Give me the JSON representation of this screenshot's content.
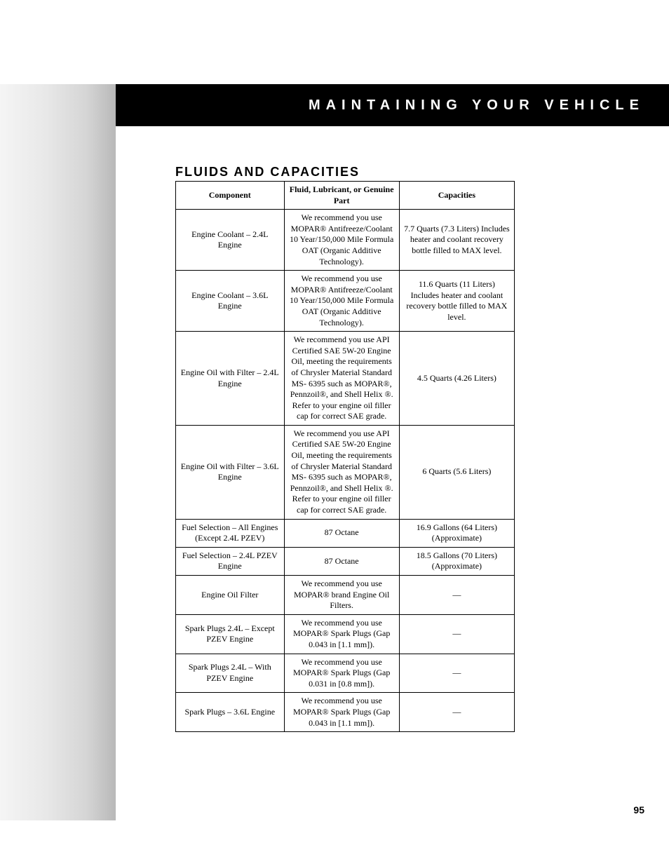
{
  "header": {
    "title": "MAINTAINING YOUR VEHICLE"
  },
  "section": {
    "title": "FLUIDS AND CAPACITIES"
  },
  "table": {
    "columns": [
      "Component",
      "Fluid, Lubricant, or Genuine Part",
      "Capacities"
    ],
    "rows": [
      {
        "component": "Engine Coolant – 2.4L Engine",
        "fluid": "We recommend you use MOPAR® Antifreeze/Coolant 10 Year/150,000 Mile Formula OAT (Organic Additive Technology).",
        "capacity": "7.7 Quarts (7.3 Liters) Includes heater and coolant recovery bottle filled to MAX level."
      },
      {
        "component": "Engine Coolant – 3.6L Engine",
        "fluid": "We recommend you use MOPAR® Antifreeze/Coolant 10 Year/150,000 Mile Formula OAT (Organic Additive Technology).",
        "capacity": "11.6 Quarts (11 Liters) Includes heater and coolant recovery bottle filled to MAX level."
      },
      {
        "component": "Engine Oil with Filter – 2.4L Engine",
        "fluid": "We recommend you use API Certified SAE 5W-20 Engine Oil, meeting the requirements of Chrysler Material Standard MS- 6395 such as MOPAR®, Pennzoil®, and Shell Helix ®. Refer to your engine oil filler cap for correct SAE grade.",
        "capacity": "4.5 Quarts (4.26 Liters)"
      },
      {
        "component": "Engine Oil with Filter – 3.6L Engine",
        "fluid": "We recommend you use API Certified SAE 5W-20 Engine Oil, meeting the requirements of Chrysler Material Standard MS- 6395 such as MOPAR®, Pennzoil®, and Shell Helix ®. Refer to your engine oil filler cap for correct SAE grade.",
        "capacity": "6 Quarts (5.6 Liters)"
      },
      {
        "component": "Fuel Selection – All Engines (Except 2.4L PZEV)",
        "fluid": "87 Octane",
        "capacity": "16.9 Gallons (64 Liters) (Approximate)"
      },
      {
        "component": "Fuel Selection – 2.4L PZEV Engine",
        "fluid": "87 Octane",
        "capacity": "18.5 Gallons (70 Liters) (Approximate)"
      },
      {
        "component": "Engine Oil Filter",
        "fluid": "We recommend you use MOPAR® brand Engine Oil Filters.",
        "capacity": "—"
      },
      {
        "component": "Spark Plugs 2.4L – Except PZEV Engine",
        "fluid": "We recommend you use MOPAR® Spark Plugs (Gap 0.043 in [1.1 mm]).",
        "capacity": "—"
      },
      {
        "component": "Spark Plugs 2.4L – With PZEV Engine",
        "fluid": "We recommend you use MOPAR® Spark Plugs (Gap 0.031 in [0.8 mm]).",
        "capacity": "—"
      },
      {
        "component": "Spark Plugs – 3.6L Engine",
        "fluid": "We recommend you use MOPAR® Spark Plugs (Gap 0.043 in [1.1 mm]).",
        "capacity": "—"
      }
    ]
  },
  "page_number": "95",
  "colors": {
    "header_bg": "#000000",
    "header_text": "#ffffff",
    "body_text": "#000000",
    "border": "#000000",
    "background": "#ffffff"
  },
  "typography": {
    "header_fontsize": 20,
    "header_letterspacing": 8,
    "section_title_fontsize": 18,
    "table_fontsize": 12,
    "page_number_fontsize": 14
  }
}
